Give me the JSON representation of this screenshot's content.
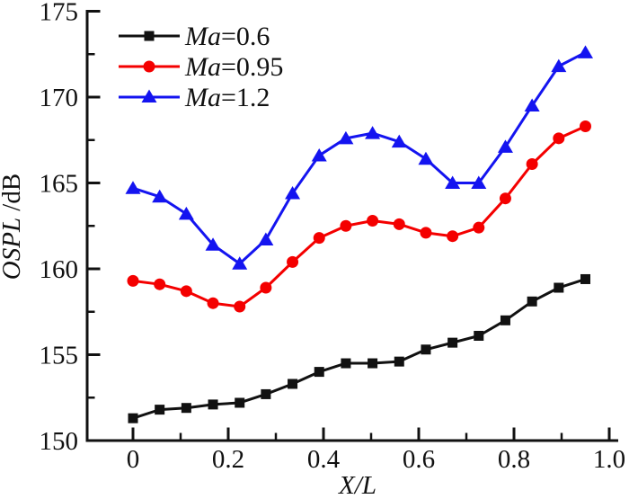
{
  "chart_data": {
    "type": "line",
    "title": "",
    "xlabel_italic": "X/L",
    "ylabel_italic": "OSPL",
    "ylabel_unit": " /dB",
    "xlim": [
      -0.096,
      1.023
    ],
    "ylim": [
      150,
      175
    ],
    "grid": false,
    "legend_position": "top-left-inside",
    "x_major_ticks": [
      0,
      0.2,
      0.4,
      0.6,
      0.8,
      1.0
    ],
    "x_major_labels": [
      "0",
      "0.2",
      "0.4",
      "0.6",
      "0.8",
      "1.0"
    ],
    "x_minor_ticks": [
      0.1,
      0.3,
      0.5,
      0.7,
      0.9
    ],
    "y_major_ticks": [
      150,
      155,
      160,
      165,
      170,
      175
    ],
    "y_major_labels": [
      "150",
      "155",
      "160",
      "165",
      "170",
      "175"
    ],
    "y_minor_ticks": [
      152.5,
      157.5,
      162.5,
      167.5,
      172.5
    ],
    "x": [
      0,
      0.056,
      0.112,
      0.168,
      0.224,
      0.279,
      0.335,
      0.391,
      0.447,
      0.503,
      0.559,
      0.615,
      0.671,
      0.726,
      0.782,
      0.838,
      0.894,
      0.95
    ],
    "series": [
      {
        "name": "Ma=0.6",
        "name_italic": "Ma",
        "name_rest": "=0.6",
        "color": "#111111",
        "marker": "square",
        "values": [
          151.3,
          151.8,
          151.9,
          152.1,
          152.2,
          152.7,
          153.3,
          154.0,
          154.5,
          154.5,
          154.6,
          155.3,
          155.7,
          156.1,
          157.0,
          158.1,
          158.9,
          159.4
        ]
      },
      {
        "name": "Ma=0.95",
        "name_italic": "Ma",
        "name_rest": "=0.95",
        "color": "#f40000",
        "marker": "circle",
        "values": [
          159.3,
          159.1,
          158.7,
          158.0,
          157.8,
          158.9,
          160.4,
          161.8,
          162.5,
          162.8,
          162.6,
          162.1,
          161.9,
          162.4,
          164.1,
          166.1,
          167.6,
          168.3
        ]
      },
      {
        "name": "Ma=1.2",
        "name_italic": "Ma",
        "name_rest": "=1.2",
        "color": "#1414f0",
        "marker": "triangle",
        "values": [
          164.7,
          164.2,
          163.2,
          161.4,
          160.3,
          161.7,
          164.4,
          166.6,
          167.6,
          167.9,
          167.4,
          166.4,
          165.0,
          165.0,
          167.1,
          169.5,
          171.8,
          172.6
        ]
      }
    ]
  },
  "colors": {
    "axis": "#111111",
    "background": "#ffffff"
  }
}
